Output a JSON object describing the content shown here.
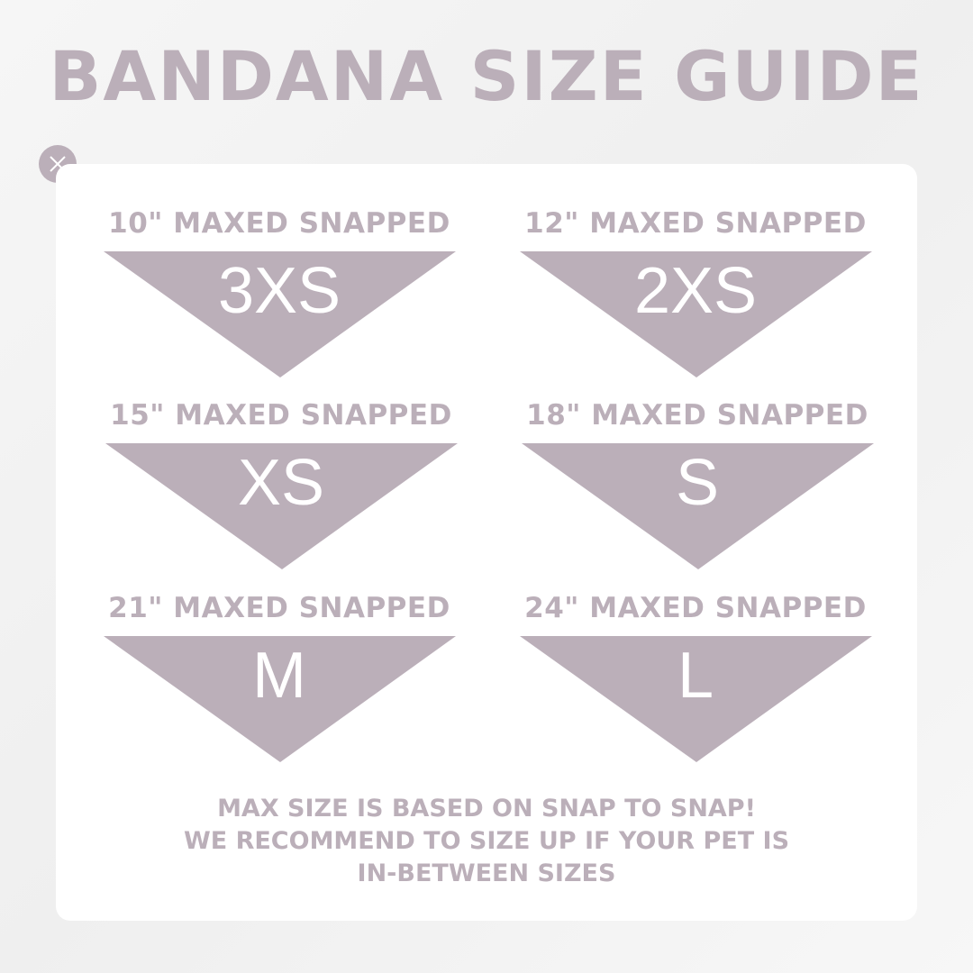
{
  "title": "BANDANA SIZE GUIDE",
  "colors": {
    "accent": "#bbafb9",
    "card": "#ffffff"
  },
  "close_icon": "close-x-icon",
  "sizes": [
    {
      "label": "10\" MAXED SNAPPED",
      "code": "3XS"
    },
    {
      "label": "12\" MAXED SNAPPED",
      "code": "2XS"
    },
    {
      "label": "15\" MAXED SNAPPED",
      "code": "XS"
    },
    {
      "label": "18\" MAXED SNAPPED",
      "code": "S"
    },
    {
      "label": "21\" MAXED SNAPPED",
      "code": "M"
    },
    {
      "label": "24\" MAXED SNAPPED",
      "code": "L"
    }
  ],
  "note": {
    "line1": "MAX SIZE IS BASED ON SNAP TO SNAP!",
    "line2": "WE RECOMMEND TO SIZE UP IF YOUR PET IS",
    "line3": "IN-BETWEEN SIZES"
  }
}
